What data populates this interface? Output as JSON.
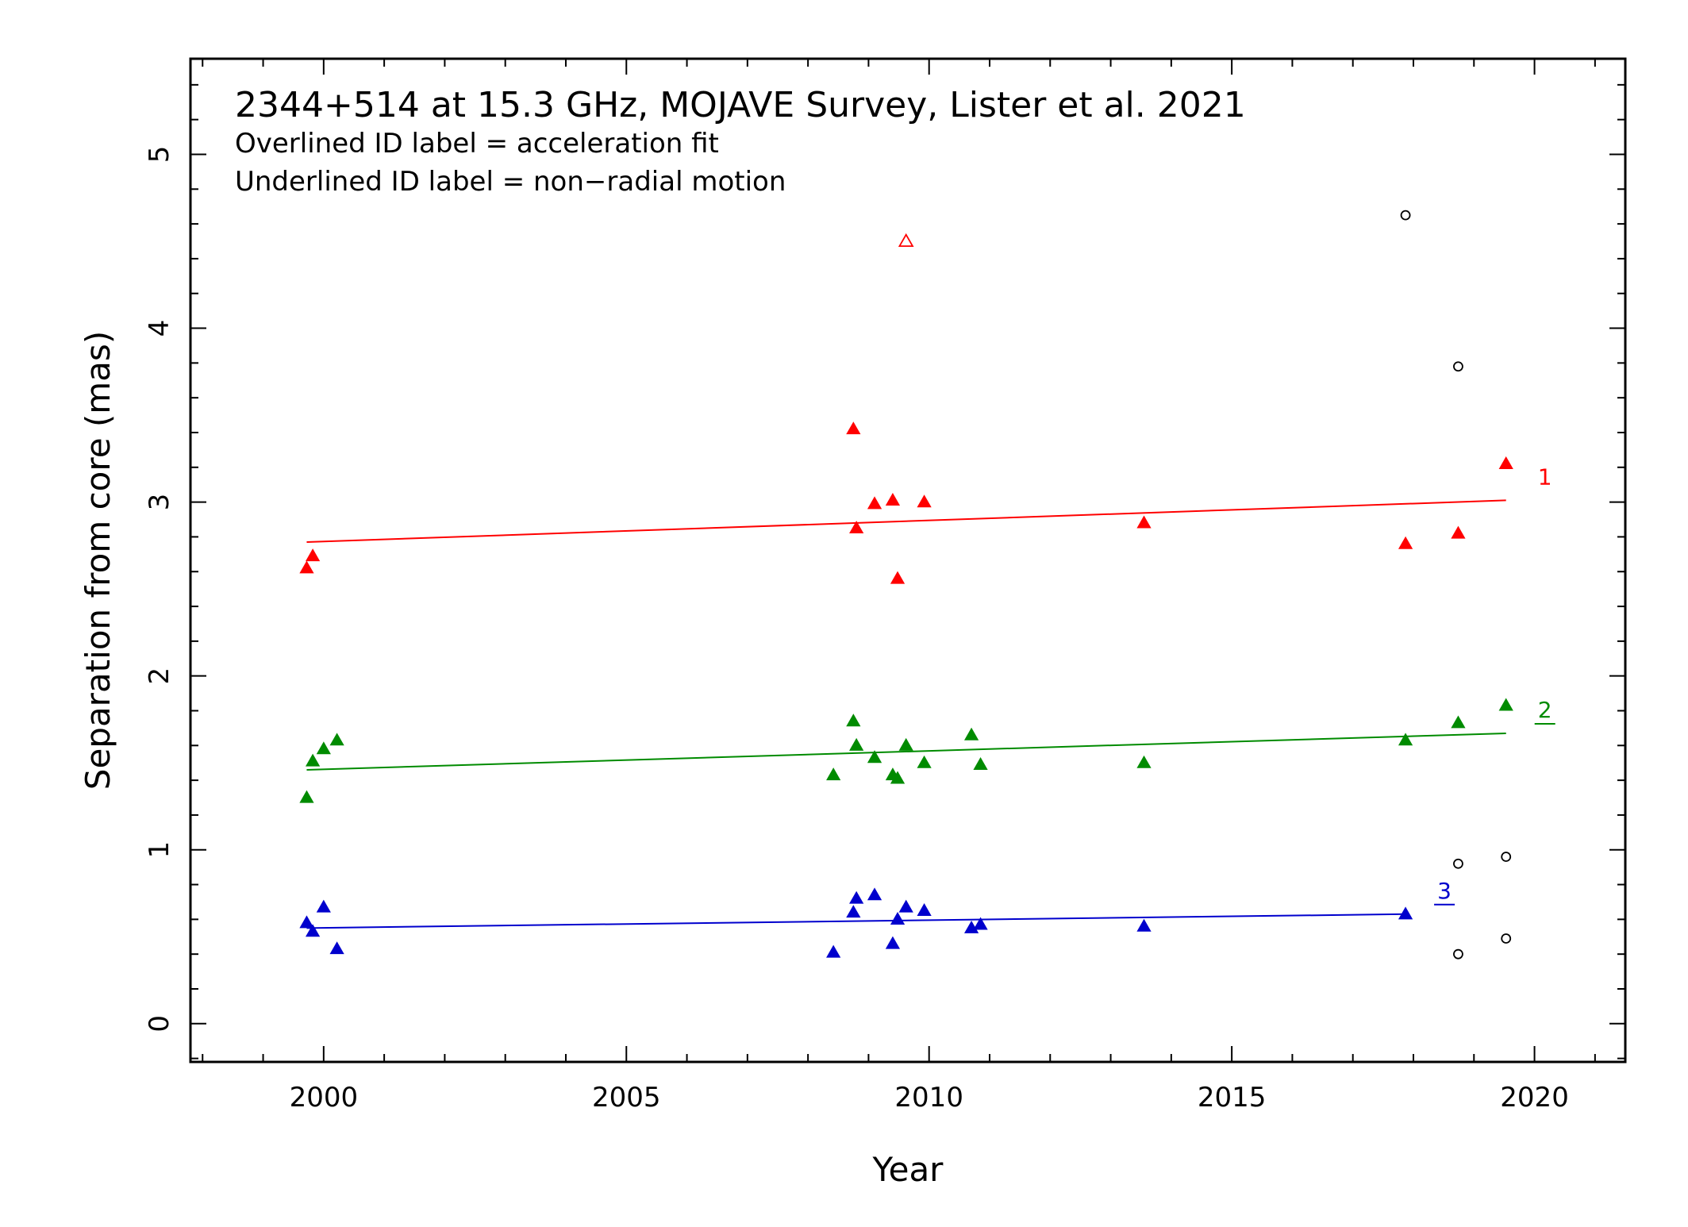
{
  "chart_data": {
    "type": "scatter",
    "title": "2344+514 at 15.3 GHz, MOJAVE Survey, Lister et al. 2021",
    "annotations": [
      "Overlined ID label = acceleration fit",
      "Underlined ID label = non−radial motion"
    ],
    "xlabel": "Year",
    "ylabel": "Separation from core (mas)",
    "xlim": [
      1997.8,
      2021.5
    ],
    "ylim": [
      -0.22,
      5.55
    ],
    "xticks": [
      2000,
      2005,
      2010,
      2015,
      2020
    ],
    "xtick_labels": [
      "2000",
      "2005",
      "2010",
      "2015",
      "2020"
    ],
    "yticks": [
      0,
      1,
      2,
      3,
      4,
      5
    ],
    "ytick_labels": [
      "0",
      "1",
      "2",
      "3",
      "4",
      "5"
    ],
    "grid": false,
    "legend": "none",
    "series": [
      {
        "name": "1",
        "color": "#ff0000",
        "marker": "filled-triangle",
        "label_decoration": "none",
        "x": [
          1999.72,
          1999.82,
          2008.75,
          2008.8,
          2009.1,
          2009.4,
          2009.48,
          2009.92,
          2013.55,
          2017.87,
          2018.74,
          2019.53
        ],
        "y": [
          2.62,
          2.69,
          3.42,
          2.85,
          2.99,
          3.01,
          2.56,
          3.0,
          2.88,
          2.76,
          2.82,
          3.22
        ],
        "fit": {
          "x": [
            1999.72,
            2019.53
          ],
          "y": [
            2.77,
            3.01
          ]
        }
      },
      {
        "name": "2",
        "color": "#008b00",
        "marker": "filled-triangle",
        "label_decoration": "underline",
        "x": [
          1999.72,
          1999.82,
          2000.0,
          2000.22,
          2008.42,
          2008.75,
          2008.8,
          2009.1,
          2009.4,
          2009.48,
          2009.62,
          2009.92,
          2010.7,
          2010.85,
          2013.55,
          2017.87,
          2018.74,
          2019.53
        ],
        "y": [
          1.3,
          1.51,
          1.58,
          1.63,
          1.43,
          1.74,
          1.6,
          1.53,
          1.43,
          1.41,
          1.6,
          1.5,
          1.66,
          1.49,
          1.5,
          1.63,
          1.73,
          1.83
        ],
        "fit": {
          "x": [
            1999.72,
            2019.53
          ],
          "y": [
            1.46,
            1.67
          ]
        }
      },
      {
        "name": "3",
        "color": "#0000cd",
        "marker": "filled-triangle",
        "label_decoration": "underline",
        "x": [
          1999.72,
          1999.82,
          2000.0,
          2000.22,
          2008.42,
          2008.75,
          2008.8,
          2009.1,
          2009.4,
          2009.48,
          2009.62,
          2009.92,
          2010.7,
          2010.85,
          2013.55,
          2017.87
        ],
        "y": [
          0.58,
          0.53,
          0.67,
          0.43,
          0.41,
          0.64,
          0.72,
          0.74,
          0.46,
          0.6,
          0.67,
          0.65,
          0.55,
          0.57,
          0.56,
          0.63
        ],
        "fit": {
          "x": [
            1999.72,
            2017.87
          ],
          "y": [
            0.55,
            0.63
          ]
        }
      },
      {
        "color": "#ff0000",
        "marker": "open-triangle",
        "x": [
          2009.62
        ],
        "y": [
          4.5
        ]
      },
      {
        "color": "#000000",
        "marker": "open-circle",
        "x": [
          2017.87,
          2018.74,
          2018.74,
          2019.53,
          2019.53
        ],
        "y": [
          4.65,
          3.78,
          0.92,
          0.96,
          0.49
        ]
      },
      {
        "color": "#000000",
        "marker": "open-circle",
        "x": [
          2018.74
        ],
        "y": [
          0.4
        ]
      }
    ]
  }
}
